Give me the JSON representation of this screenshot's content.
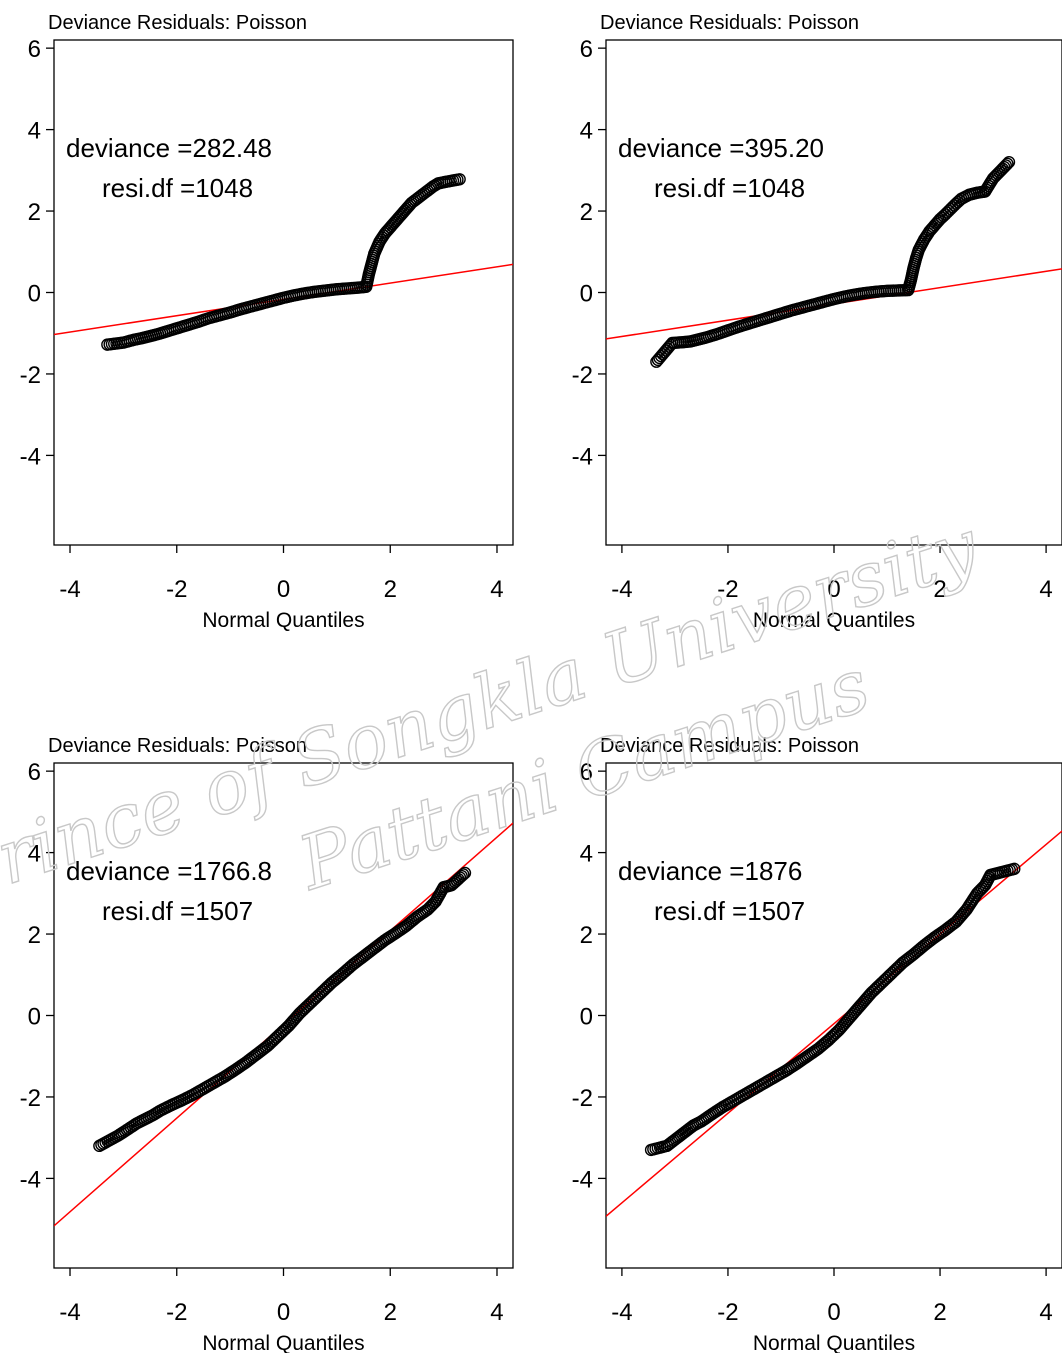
{
  "chart_data": [
    {
      "type": "scatter",
      "title": "Deviance Residuals: Poisson",
      "xlabel": "Normal Quantiles",
      "ylabel": "",
      "xlim": [
        -4.3,
        4.3
      ],
      "ylim": [
        -6.2,
        6.2
      ],
      "xticks": [
        -4,
        -2,
        0,
        2,
        4
      ],
      "xtick_labels": [
        "-4",
        "-2",
        "0",
        "2",
        "4"
      ],
      "yticks": [
        6,
        4,
        2,
        0,
        -2,
        -4
      ],
      "ytick_labels": [
        "6",
        "4",
        "2",
        "0",
        "-2",
        "-4"
      ],
      "annotation_lines": [
        "deviance =282.48",
        "resi.df =1048"
      ],
      "reference_line_color": "#ff0000",
      "point_color": "#000000",
      "reference_line": {
        "intercept": -0.17,
        "slope": 0.2
      },
      "points": [
        [
          -3.3,
          -1.28
        ],
        [
          -3.0,
          -1.23
        ],
        [
          -2.8,
          -1.16
        ],
        [
          -2.65,
          -1.12
        ],
        [
          -2.5,
          -1.07
        ],
        [
          -2.35,
          -1.02
        ],
        [
          -2.2,
          -0.96
        ],
        [
          -2.0,
          -0.88
        ],
        [
          -1.8,
          -0.8
        ],
        [
          -1.6,
          -0.72
        ],
        [
          -1.4,
          -0.63
        ],
        [
          -1.2,
          -0.56
        ],
        [
          -1.0,
          -0.49
        ],
        [
          -0.8,
          -0.41
        ],
        [
          -0.6,
          -0.34
        ],
        [
          -0.4,
          -0.27
        ],
        [
          -0.2,
          -0.2
        ],
        [
          0.0,
          -0.13
        ],
        [
          0.2,
          -0.07
        ],
        [
          0.4,
          -0.02
        ],
        [
          0.6,
          0.02
        ],
        [
          0.8,
          0.05
        ],
        [
          1.0,
          0.08
        ],
        [
          1.2,
          0.1
        ],
        [
          1.4,
          0.12
        ],
        [
          1.55,
          0.14
        ],
        [
          1.6,
          0.45
        ],
        [
          1.65,
          0.7
        ],
        [
          1.7,
          0.95
        ],
        [
          1.75,
          1.1
        ],
        [
          1.8,
          1.25
        ],
        [
          1.9,
          1.45
        ],
        [
          2.0,
          1.6
        ],
        [
          2.1,
          1.75
        ],
        [
          2.2,
          1.9
        ],
        [
          2.3,
          2.05
        ],
        [
          2.4,
          2.2
        ],
        [
          2.5,
          2.3
        ],
        [
          2.6,
          2.4
        ],
        [
          2.7,
          2.5
        ],
        [
          2.8,
          2.6
        ],
        [
          2.9,
          2.68
        ],
        [
          3.05,
          2.72
        ],
        [
          3.3,
          2.78
        ]
      ]
    },
    {
      "type": "scatter",
      "title": "Deviance Residuals: Poisson",
      "xlabel": "Normal Quantiles",
      "ylabel": "",
      "xlim": [
        -4.3,
        4.3
      ],
      "ylim": [
        -6.2,
        6.2
      ],
      "xticks": [
        -4,
        -2,
        0,
        2,
        4
      ],
      "xtick_labels": [
        "-4",
        "-2",
        "0",
        "2",
        "4"
      ],
      "yticks": [
        6,
        4,
        2,
        0,
        -2,
        -4
      ],
      "ytick_labels": [
        "6",
        "4",
        "2",
        "0",
        "-2",
        "-4"
      ],
      "annotation_lines": [
        "deviance =395.20",
        "resi.df =1048"
      ],
      "reference_line_color": "#ff0000",
      "point_color": "#000000",
      "reference_line": {
        "intercept": -0.28,
        "slope": 0.2
      },
      "points": [
        [
          -3.35,
          -1.7
        ],
        [
          -3.05,
          -1.24
        ],
        [
          -2.85,
          -1.22
        ],
        [
          -2.7,
          -1.2
        ],
        [
          -2.55,
          -1.15
        ],
        [
          -2.4,
          -1.1
        ],
        [
          -2.2,
          -1.02
        ],
        [
          -2.0,
          -0.93
        ],
        [
          -1.8,
          -0.84
        ],
        [
          -1.6,
          -0.76
        ],
        [
          -1.4,
          -0.68
        ],
        [
          -1.2,
          -0.6
        ],
        [
          -1.0,
          -0.52
        ],
        [
          -0.8,
          -0.44
        ],
        [
          -0.6,
          -0.37
        ],
        [
          -0.4,
          -0.3
        ],
        [
          -0.2,
          -0.23
        ],
        [
          0.0,
          -0.16
        ],
        [
          0.2,
          -0.1
        ],
        [
          0.4,
          -0.05
        ],
        [
          0.6,
          -0.01
        ],
        [
          0.8,
          0.02
        ],
        [
          1.0,
          0.04
        ],
        [
          1.2,
          0.05
        ],
        [
          1.4,
          0.06
        ],
        [
          1.45,
          0.3
        ],
        [
          1.5,
          0.6
        ],
        [
          1.55,
          0.85
        ],
        [
          1.6,
          1.05
        ],
        [
          1.7,
          1.3
        ],
        [
          1.8,
          1.5
        ],
        [
          1.9,
          1.65
        ],
        [
          2.0,
          1.8
        ],
        [
          2.1,
          1.92
        ],
        [
          2.2,
          2.05
        ],
        [
          2.3,
          2.18
        ],
        [
          2.4,
          2.3
        ],
        [
          2.55,
          2.4
        ],
        [
          2.7,
          2.45
        ],
        [
          2.85,
          2.48
        ],
        [
          3.0,
          2.8
        ],
        [
          3.3,
          3.2
        ]
      ]
    },
    {
      "type": "scatter",
      "title": "Deviance Residuals: Poisson",
      "xlabel": "Normal Quantiles",
      "ylabel": "",
      "xlim": [
        -4.3,
        4.3
      ],
      "ylim": [
        -6.2,
        6.2
      ],
      "xticks": [
        -4,
        -2,
        0,
        2,
        4
      ],
      "xtick_labels": [
        "-4",
        "-2",
        "0",
        "2",
        "4"
      ],
      "yticks": [
        6,
        4,
        2,
        0,
        -2,
        -4
      ],
      "ytick_labels": [
        "6",
        "4",
        "2",
        "0",
        "-2",
        "-4"
      ],
      "annotation_lines": [
        "deviance =1766.8",
        "resi.df =1507"
      ],
      "reference_line_color": "#ff0000",
      "point_color": "#000000",
      "reference_line": {
        "intercept": -0.22,
        "slope": 1.15
      },
      "points": [
        [
          -3.45,
          -3.2
        ],
        [
          -3.1,
          -2.95
        ],
        [
          -2.9,
          -2.78
        ],
        [
          -2.75,
          -2.65
        ],
        [
          -2.6,
          -2.55
        ],
        [
          -2.45,
          -2.45
        ],
        [
          -2.3,
          -2.33
        ],
        [
          -2.1,
          -2.2
        ],
        [
          -1.9,
          -2.08
        ],
        [
          -1.7,
          -1.95
        ],
        [
          -1.5,
          -1.8
        ],
        [
          -1.3,
          -1.65
        ],
        [
          -1.1,
          -1.5
        ],
        [
          -0.9,
          -1.33
        ],
        [
          -0.7,
          -1.15
        ],
        [
          -0.5,
          -0.95
        ],
        [
          -0.3,
          -0.75
        ],
        [
          -0.1,
          -0.5
        ],
        [
          0.1,
          -0.25
        ],
        [
          0.3,
          0.05
        ],
        [
          0.5,
          0.3
        ],
        [
          0.7,
          0.55
        ],
        [
          0.9,
          0.8
        ],
        [
          1.1,
          1.02
        ],
        [
          1.3,
          1.25
        ],
        [
          1.5,
          1.45
        ],
        [
          1.7,
          1.65
        ],
        [
          1.9,
          1.85
        ],
        [
          2.1,
          2.02
        ],
        [
          2.3,
          2.2
        ],
        [
          2.5,
          2.42
        ],
        [
          2.7,
          2.6
        ],
        [
          2.85,
          2.8
        ],
        [
          3.0,
          3.15
        ],
        [
          3.15,
          3.2
        ],
        [
          3.4,
          3.5
        ]
      ]
    },
    {
      "type": "scatter",
      "title": "Deviance Residuals: Poisson",
      "xlabel": "Normal Quantiles",
      "ylabel": "",
      "xlim": [
        -4.3,
        4.3
      ],
      "ylim": [
        -6.2,
        6.2
      ],
      "xticks": [
        -4,
        -2,
        0,
        2,
        4
      ],
      "xtick_labels": [
        "-4",
        "-2",
        "0",
        "2",
        "4"
      ],
      "yticks": [
        6,
        4,
        2,
        0,
        -2,
        -4
      ],
      "ytick_labels": [
        "6",
        "4",
        "2",
        "0",
        "-2",
        "-4"
      ],
      "annotation_lines": [
        "deviance =1876",
        "resi.df =1507"
      ],
      "reference_line_color": "#ff0000",
      "point_color": "#000000",
      "reference_line": {
        "intercept": -0.2,
        "slope": 1.1
      },
      "points": [
        [
          -3.45,
          -3.3
        ],
        [
          -3.15,
          -3.2
        ],
        [
          -2.95,
          -3.0
        ],
        [
          -2.8,
          -2.85
        ],
        [
          -2.65,
          -2.7
        ],
        [
          -2.5,
          -2.6
        ],
        [
          -2.3,
          -2.42
        ],
        [
          -2.1,
          -2.25
        ],
        [
          -1.9,
          -2.1
        ],
        [
          -1.7,
          -1.95
        ],
        [
          -1.5,
          -1.8
        ],
        [
          -1.3,
          -1.65
        ],
        [
          -1.1,
          -1.5
        ],
        [
          -0.9,
          -1.35
        ],
        [
          -0.7,
          -1.18
        ],
        [
          -0.5,
          -1.0
        ],
        [
          -0.3,
          -0.82
        ],
        [
          -0.1,
          -0.6
        ],
        [
          0.1,
          -0.35
        ],
        [
          0.3,
          -0.05
        ],
        [
          0.5,
          0.25
        ],
        [
          0.7,
          0.55
        ],
        [
          0.9,
          0.8
        ],
        [
          1.1,
          1.05
        ],
        [
          1.3,
          1.3
        ],
        [
          1.5,
          1.5
        ],
        [
          1.7,
          1.72
        ],
        [
          1.9,
          1.92
        ],
        [
          2.1,
          2.1
        ],
        [
          2.3,
          2.3
        ],
        [
          2.5,
          2.6
        ],
        [
          2.7,
          3.0
        ],
        [
          2.85,
          3.2
        ],
        [
          2.95,
          3.45
        ],
        [
          3.1,
          3.5
        ],
        [
          3.4,
          3.6
        ]
      ]
    }
  ],
  "watermark": {
    "lines": [
      "Prince of Songkla University",
      "Pattani Campus"
    ],
    "color": "#c8c8c8"
  }
}
